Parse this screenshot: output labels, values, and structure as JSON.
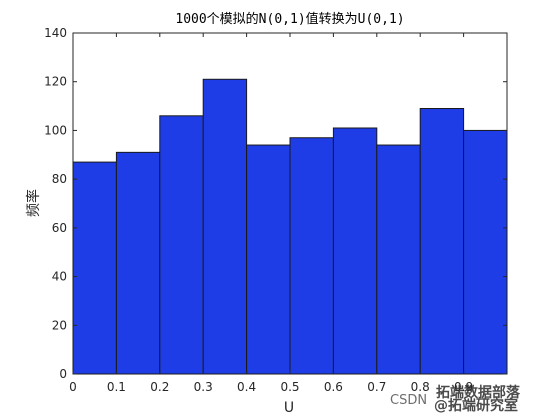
{
  "chart_data": {
    "type": "bar",
    "title": "1000个模拟的N(0,1)值转换为U(0,1)",
    "xlabel": "U",
    "ylabel": "频率",
    "bin_edges": [
      0,
      0.1,
      0.2,
      0.3,
      0.4,
      0.5,
      0.6,
      0.7,
      0.8,
      0.9,
      1.0
    ],
    "values": [
      87,
      91,
      106,
      121,
      94,
      97,
      101,
      94,
      109,
      100
    ],
    "xlim": [
      0,
      1.0
    ],
    "ylim": [
      0,
      140
    ],
    "x_ticks": [
      0,
      0.1,
      0.2,
      0.3,
      0.4,
      0.5,
      0.6,
      0.7,
      0.8,
      0.9
    ],
    "x_tick_labels": [
      "0",
      "0.1",
      "0.2",
      "0.3",
      "0.4",
      "0.5",
      "0.6",
      "0.7",
      "0.8",
      "0.9"
    ],
    "y_ticks": [
      0,
      20,
      40,
      60,
      80,
      100,
      120,
      140
    ],
    "y_tick_labels": [
      "0",
      "20",
      "40",
      "60",
      "80",
      "100",
      "120",
      "140"
    ],
    "grid": false,
    "legend": "none",
    "bar_color": "#1f3de6",
    "edge_color": "#1a1a1a"
  },
  "watermark": {
    "csdn": "CSDN",
    "handle": "@拓端研究室",
    "brand": "拓端数据部落"
  }
}
